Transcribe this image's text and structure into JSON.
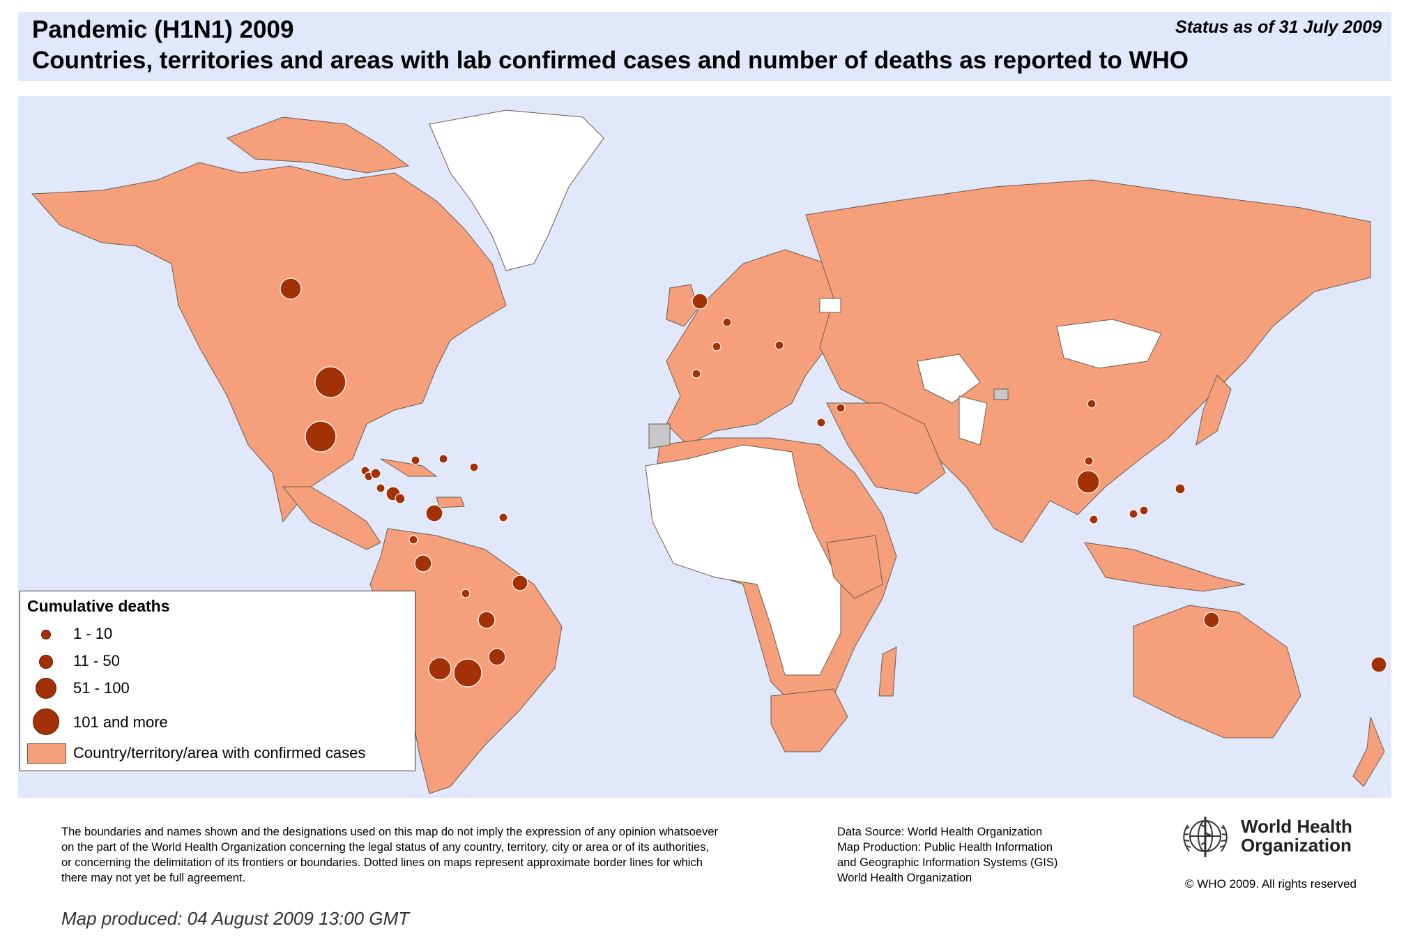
{
  "header": {
    "title_line1": "Pandemic (H1N1) 2009",
    "title_line2": "Countries, territories and areas with lab confirmed cases and number of deaths as reported to WHO",
    "status": "Status as of 31 July 2009"
  },
  "colors": {
    "ocean": "#e1e8fb",
    "confirmed_cases": "#f5a07a",
    "no_cases": "#ffffff",
    "undetermined": "#c8c8c8",
    "death_marker": "#a23206"
  },
  "legend": {
    "title": "Cumulative deaths",
    "items": [
      {
        "label": "1 - 10"
      },
      {
        "label": "11 - 50"
      },
      {
        "label": "51 - 100"
      },
      {
        "label": "101 and more"
      }
    ],
    "area_label": "Country/territory/area with confirmed cases"
  },
  "map_markers": [
    {
      "place": "Canada",
      "deaths_class": "11-50"
    },
    {
      "place": "United States",
      "deaths_class": "101 and more"
    },
    {
      "place": "Mexico",
      "deaths_class": "101 and more"
    },
    {
      "place": "Guatemala",
      "deaths_class": "1-10"
    },
    {
      "place": "El Salvador",
      "deaths_class": "1-10"
    },
    {
      "place": "Honduras",
      "deaths_class": "1-10"
    },
    {
      "place": "Nicaragua",
      "deaths_class": "1-10"
    },
    {
      "place": "Costa Rica",
      "deaths_class": "11-50"
    },
    {
      "place": "Panama",
      "deaths_class": "1-10"
    },
    {
      "place": "Jamaica",
      "deaths_class": "1-10"
    },
    {
      "place": "Dominican Republic",
      "deaths_class": "1-10"
    },
    {
      "place": "Trinidad and Tobago",
      "deaths_class": "1-10"
    },
    {
      "place": "Colombia",
      "deaths_class": "11-50"
    },
    {
      "place": "Venezuela",
      "deaths_class": "1-10"
    },
    {
      "place": "Ecuador",
      "deaths_class": "1-10"
    },
    {
      "place": "Peru",
      "deaths_class": "11-50"
    },
    {
      "place": "Bolivia",
      "deaths_class": "1-10"
    },
    {
      "place": "Brazil",
      "deaths_class": "11-50"
    },
    {
      "place": "Paraguay",
      "deaths_class": "11-50"
    },
    {
      "place": "Chile",
      "deaths_class": "51-100"
    },
    {
      "place": "Argentina",
      "deaths_class": "101 and more"
    },
    {
      "place": "Uruguay",
      "deaths_class": "11-50"
    },
    {
      "place": "United Kingdom",
      "deaths_class": "11-50"
    },
    {
      "place": "Netherlands",
      "deaths_class": "1-10"
    },
    {
      "place": "France",
      "deaths_class": "1-10"
    },
    {
      "place": "Spain",
      "deaths_class": "1-10"
    },
    {
      "place": "Hungary",
      "deaths_class": "1-10"
    },
    {
      "place": "Egypt",
      "deaths_class": "1-10"
    },
    {
      "place": "Israel",
      "deaths_class": "1-10"
    },
    {
      "place": "China",
      "deaths_class": "1-10"
    },
    {
      "place": "Thailand",
      "deaths_class": "51-100"
    },
    {
      "place": "Cambodia",
      "deaths_class": "1-10"
    },
    {
      "place": "Malaysia",
      "deaths_class": "1-10"
    },
    {
      "place": "Singapore",
      "deaths_class": "1-10"
    },
    {
      "place": "Brunei",
      "deaths_class": "1-10"
    },
    {
      "place": "Philippines",
      "deaths_class": "1-10"
    },
    {
      "place": "Australia",
      "deaths_class": "11-50"
    },
    {
      "place": "New Zealand",
      "deaths_class": "11-50"
    }
  ],
  "footer": {
    "disclaimer": [
      "The boundaries and names shown and the designations used on this map do not imply the expression of any opinion whatsoever",
      "on the part of the World Health Organization concerning the legal status of any country, territory, city or area or of its authorities,",
      "or concerning the delimitation of its frontiers or boundaries.  Dotted lines on maps represent approximate border lines for which",
      "there may not yet be full agreement."
    ],
    "produced": "Map produced: 04 August 2009 13:00 GMT",
    "source": [
      "Data Source: World Health Organization",
      "Map Production: Public Health Information",
      "and Geographic Information Systems (GIS)",
      "World Health Organization"
    ],
    "org_name": [
      "World Health",
      "Organization"
    ],
    "copyright": "© WHO 2009. All rights reserved"
  }
}
